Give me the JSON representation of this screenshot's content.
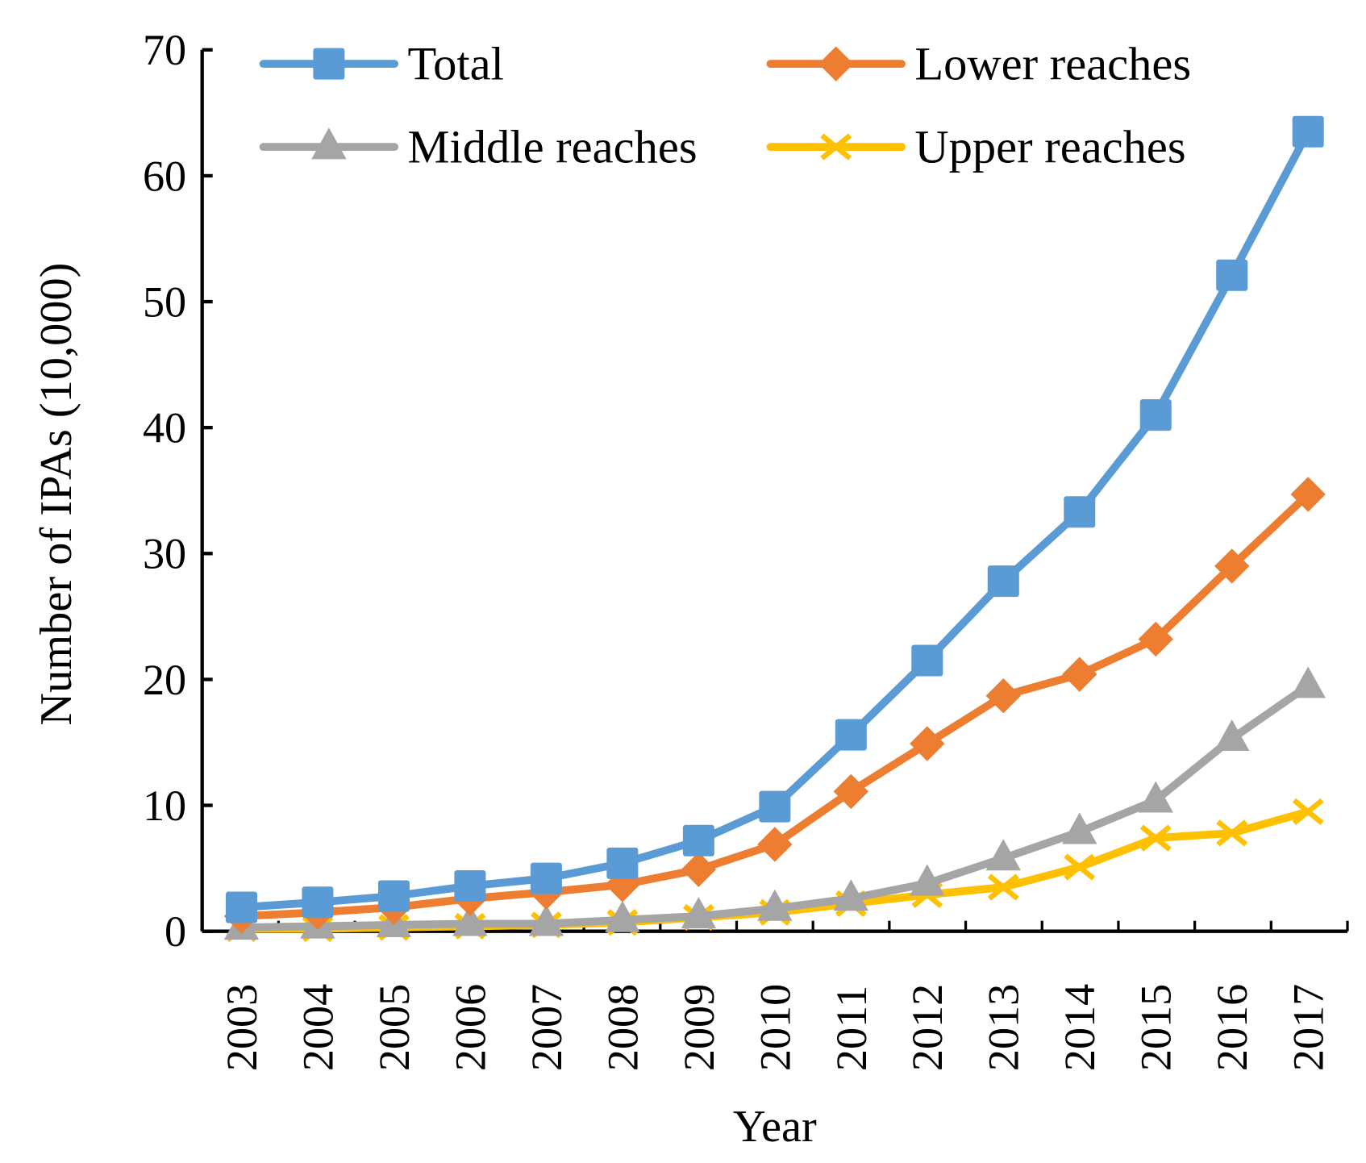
{
  "chart_data": {
    "type": "line",
    "title": "",
    "xlabel": "Year",
    "ylabel": "Number of IPAs (10,000)",
    "ylim": [
      0,
      70
    ],
    "yticks": [
      "0",
      "10",
      "20",
      "30",
      "40",
      "50",
      "60",
      "70"
    ],
    "ytick_values": [
      0,
      10,
      20,
      30,
      40,
      50,
      60,
      70
    ],
    "categories": [
      "2003",
      "2004",
      "2005",
      "2006",
      "2007",
      "2008",
      "2009",
      "2010",
      "2011",
      "2012",
      "2013",
      "2014",
      "2015",
      "2016",
      "2017"
    ],
    "grid": false,
    "legend_position": "top",
    "series": [
      {
        "name": "Total",
        "color": "#5B9BD5",
        "marker": "square",
        "values": [
          1.9,
          2.3,
          2.8,
          3.6,
          4.2,
          5.4,
          7.2,
          9.9,
          15.6,
          21.5,
          27.8,
          33.3,
          41.0,
          52.1,
          63.5
        ]
      },
      {
        "name": "Lower reaches",
        "color": "#ED7D31",
        "marker": "diamond",
        "values": [
          1.2,
          1.5,
          1.9,
          2.6,
          3.1,
          3.7,
          4.9,
          6.9,
          11.1,
          14.9,
          18.7,
          20.4,
          23.2,
          29.0,
          34.7
        ]
      },
      {
        "name": "Middle reaches",
        "color": "#A5A5A5",
        "marker": "triangle",
        "values": [
          0.3,
          0.4,
          0.5,
          0.6,
          0.6,
          0.9,
          1.2,
          1.8,
          2.6,
          3.8,
          5.8,
          7.9,
          10.4,
          15.3,
          19.5
        ]
      },
      {
        "name": "Upper reaches",
        "color": "#FFC000",
        "marker": "x",
        "values": [
          0.2,
          0.2,
          0.3,
          0.4,
          0.5,
          0.7,
          1.1,
          1.5,
          2.2,
          2.9,
          3.5,
          5.1,
          7.4,
          7.8,
          9.5
        ]
      }
    ]
  }
}
